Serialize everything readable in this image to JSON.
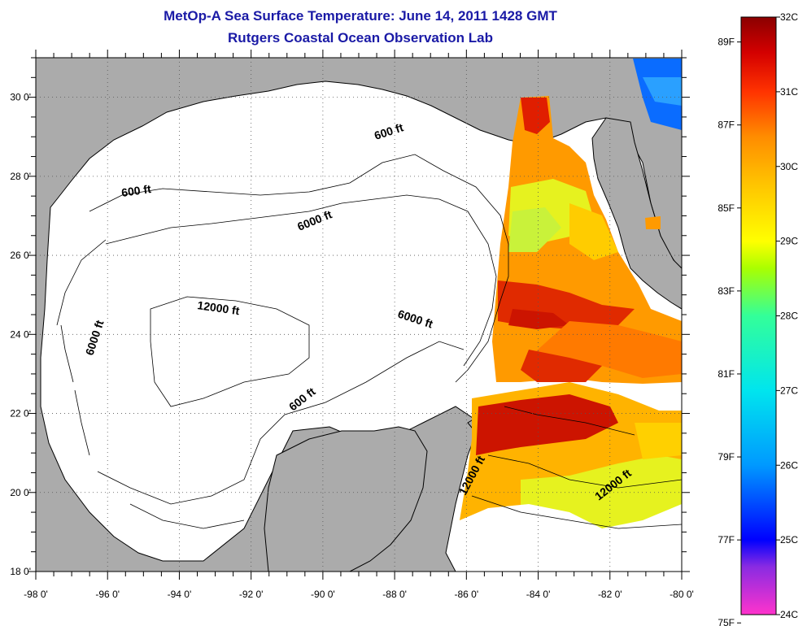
{
  "title": "MetOp-A Sea Surface Temperature:  June 14, 2011 1428 GMT",
  "subtitle": "Rutgers Coastal Ocean Observation Lab",
  "map": {
    "lon_range": [
      -98,
      -80
    ],
    "lat_range": [
      18,
      31
    ],
    "x_ticks": [
      "-98 0'",
      "-96 0'",
      "-94 0'",
      "-92 0'",
      "-90 0'",
      "-88 0'",
      "-86 0'",
      "-84 0'",
      "-82 0'",
      "-80 0'"
    ],
    "y_ticks": [
      "30 0'",
      "28 0'",
      "26 0'",
      "24 0'",
      "22 0'",
      "20 0'",
      "18 0'"
    ],
    "grid": "dotted",
    "land_color": "#ababab",
    "no_data_color": "#ffffff",
    "contour_labels": [
      "600 ft",
      "600 ft",
      "6000 ft",
      "6000 ft",
      "12000 ft",
      "6000 ft",
      "600 ft",
      "12000 ft",
      "12000 ft"
    ]
  },
  "colorbar": {
    "celsius_labels": [
      "32C",
      "31C",
      "30C",
      "29C",
      "28C",
      "27C",
      "26C",
      "25C",
      "24C"
    ],
    "fahrenheit_labels": [
      "89F",
      "87F",
      "85F",
      "83F",
      "81F",
      "79F",
      "77F",
      "75F"
    ],
    "colors": [
      "#ff33cc",
      "#8a2be2",
      "#0000ff",
      "#0099ff",
      "#00e5ee",
      "#33ff99",
      "#aaff00",
      "#ffff00",
      "#ffc400",
      "#ff8c00",
      "#ff3300",
      "#d40000",
      "#8b0000"
    ]
  }
}
